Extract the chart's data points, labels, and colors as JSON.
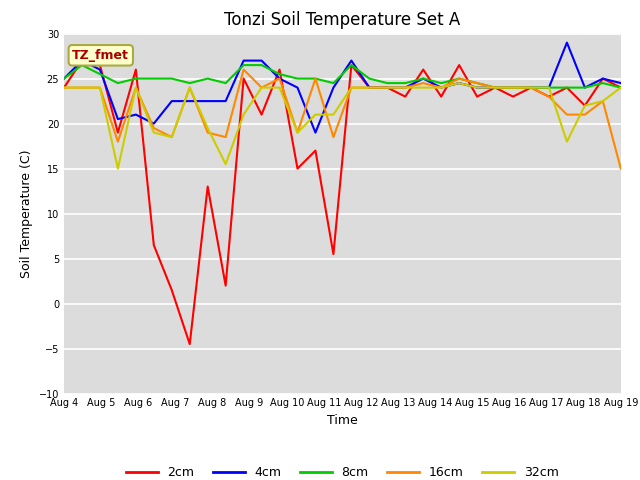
{
  "title": "Tonzi Soil Temperature Set A",
  "xlabel": "Time",
  "ylabel": "Soil Temperature (C)",
  "ylim": [
    -10,
    30
  ],
  "yticks": [
    -10,
    -5,
    0,
    5,
    10,
    15,
    20,
    25,
    30
  ],
  "annotation_text": "TZ_fmet",
  "annotation_color": "#aa0000",
  "annotation_bg": "#ffffcc",
  "annotation_edge": "#aaaa44",
  "x_tick_labels": [
    "Aug 4",
    "Aug 5",
    "Aug 6",
    "Aug 7",
    "Aug 8",
    "Aug 9",
    "Aug 10",
    "Aug 11",
    "Aug 12",
    "Aug 13",
    "Aug 14",
    "Aug 15",
    "Aug 16",
    "Aug 17",
    "Aug 18",
    "Aug 19"
  ],
  "n_points": 32,
  "series_colors": {
    "2cm": "#ff0000",
    "4cm": "#0000ff",
    "8cm": "#00cc00",
    "16cm": "#ff8800",
    "32cm": "#cccc00"
  },
  "data_2cm": [
    24.0,
    27.0,
    26.5,
    19.0,
    26.0,
    6.5,
    1.5,
    -4.5,
    13.0,
    2.0,
    25.0,
    21.0,
    26.0,
    15.0,
    17.0,
    5.5,
    26.5,
    24.0,
    24.0,
    23.0,
    26.0,
    23.0,
    26.5,
    23.0,
    24.0,
    23.0,
    24.0,
    23.0,
    24.0,
    22.0,
    25.0,
    24.0
  ],
  "data_4cm": [
    25.0,
    27.0,
    26.0,
    20.5,
    21.0,
    20.0,
    22.5,
    22.5,
    22.5,
    22.5,
    27.0,
    27.0,
    25.0,
    24.0,
    19.0,
    24.0,
    27.0,
    24.0,
    24.0,
    24.0,
    25.0,
    24.0,
    24.5,
    24.0,
    24.0,
    24.0,
    24.0,
    24.0,
    29.0,
    24.0,
    25.0,
    24.5
  ],
  "data_8cm": [
    25.0,
    26.5,
    25.5,
    24.5,
    25.0,
    25.0,
    25.0,
    24.5,
    25.0,
    24.5,
    26.5,
    26.5,
    25.5,
    25.0,
    25.0,
    24.5,
    26.5,
    25.0,
    24.5,
    24.5,
    25.0,
    24.5,
    25.0,
    24.5,
    24.0,
    24.0,
    24.0,
    24.0,
    24.0,
    24.0,
    24.5,
    24.0
  ],
  "data_16cm": [
    24.0,
    24.0,
    24.0,
    18.0,
    24.0,
    19.5,
    18.5,
    24.0,
    19.0,
    18.5,
    26.0,
    24.0,
    25.0,
    19.0,
    25.0,
    18.5,
    24.0,
    24.0,
    24.0,
    24.0,
    24.5,
    24.0,
    25.0,
    24.5,
    24.0,
    24.0,
    24.0,
    23.0,
    21.0,
    21.0,
    22.5,
    15.0
  ],
  "data_32cm": [
    24.0,
    24.0,
    24.0,
    15.0,
    24.0,
    19.0,
    18.5,
    24.0,
    19.5,
    15.5,
    21.0,
    24.0,
    24.0,
    19.0,
    21.0,
    21.0,
    24.0,
    24.0,
    24.0,
    24.0,
    24.0,
    24.0,
    24.5,
    24.0,
    24.0,
    24.0,
    24.0,
    24.0,
    18.0,
    22.0,
    22.5,
    24.0
  ],
  "fig_bg": "#ffffff",
  "plot_bg": "#dcdcdc",
  "grid_color": "#ffffff",
  "title_fontsize": 12,
  "axis_label_fontsize": 9,
  "tick_fontsize": 7,
  "legend_fontsize": 9,
  "linewidth": 1.5
}
